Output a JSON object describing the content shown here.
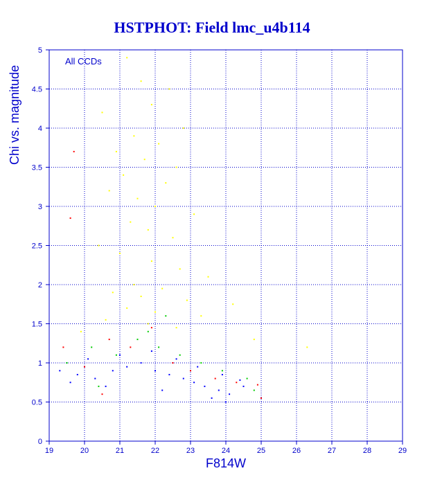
{
  "chart_data": {
    "type": "scatter",
    "title": "HSTPHOT: Field lmc_u4b114",
    "xlabel": "F814W",
    "ylabel": "Chi vs. magnitude",
    "annotation": "All CCDs",
    "xlim": [
      19,
      29
    ],
    "ylim": [
      0,
      5
    ],
    "xticks": [
      "19",
      "20",
      "21",
      "22",
      "23",
      "24",
      "25",
      "26",
      "27",
      "28",
      "29"
    ],
    "yticks": [
      "0",
      "0.5",
      "1",
      "1.5",
      "2",
      "2.5",
      "3",
      "3.5",
      "4",
      "4.5",
      "5"
    ],
    "grid": true,
    "colors": {
      "axes": "#0000cc",
      "grid": "#0000cc",
      "border": "#000000"
    },
    "series": [
      {
        "color": "#ffff00",
        "points": [
          [
            21.2,
            4.9
          ],
          [
            21.6,
            4.6
          ],
          [
            22.4,
            4.5
          ],
          [
            21.9,
            4.3
          ],
          [
            20.5,
            4.2
          ],
          [
            22.8,
            4.0
          ],
          [
            21.4,
            3.9
          ],
          [
            22.1,
            3.8
          ],
          [
            20.9,
            3.7
          ],
          [
            21.7,
            3.6
          ],
          [
            22.6,
            3.5
          ],
          [
            21.1,
            3.4
          ],
          [
            22.3,
            3.3
          ],
          [
            20.7,
            3.2
          ],
          [
            21.5,
            3.1
          ],
          [
            22.0,
            3.0
          ],
          [
            23.1,
            2.9
          ],
          [
            21.3,
            2.8
          ],
          [
            21.8,
            2.7
          ],
          [
            22.5,
            2.6
          ],
          [
            20.4,
            2.5
          ],
          [
            21.0,
            2.4
          ],
          [
            21.9,
            2.3
          ],
          [
            22.7,
            2.2
          ],
          [
            23.5,
            2.1
          ],
          [
            21.4,
            2.0
          ],
          [
            22.2,
            1.95
          ],
          [
            20.8,
            1.9
          ],
          [
            21.6,
            1.85
          ],
          [
            22.9,
            1.8
          ],
          [
            24.2,
            1.75
          ],
          [
            21.2,
            1.7
          ],
          [
            22.0,
            1.65
          ],
          [
            23.3,
            1.6
          ],
          [
            20.6,
            1.55
          ],
          [
            21.8,
            1.5
          ],
          [
            22.6,
            1.45
          ],
          [
            19.9,
            1.4
          ],
          [
            24.8,
            1.3
          ],
          [
            26.3,
            1.2
          ]
        ]
      },
      {
        "color": "#0000ff",
        "points": [
          [
            19.3,
            0.9
          ],
          [
            19.8,
            0.85
          ],
          [
            20.3,
            0.8
          ],
          [
            20.8,
            0.9
          ],
          [
            21.2,
            0.95
          ],
          [
            21.6,
            1.0
          ],
          [
            22.0,
            0.9
          ],
          [
            22.4,
            0.85
          ],
          [
            22.8,
            0.8
          ],
          [
            23.1,
            0.75
          ],
          [
            23.4,
            0.7
          ],
          [
            23.8,
            0.65
          ],
          [
            24.1,
            0.6
          ],
          [
            24.5,
            0.7
          ],
          [
            20.1,
            1.05
          ],
          [
            21.0,
            1.1
          ],
          [
            21.9,
            1.15
          ],
          [
            22.6,
            1.05
          ],
          [
            23.2,
            0.95
          ],
          [
            23.9,
            0.85
          ],
          [
            24.4,
            0.78
          ],
          [
            19.6,
            0.75
          ],
          [
            20.6,
            0.7
          ],
          [
            22.2,
            0.65
          ],
          [
            23.6,
            0.55
          ],
          [
            24.0,
            0.5
          ]
        ]
      },
      {
        "color": "#00cc00",
        "points": [
          [
            19.5,
            1.0
          ],
          [
            20.2,
            1.2
          ],
          [
            20.9,
            1.1
          ],
          [
            21.5,
            1.3
          ],
          [
            22.1,
            1.2
          ],
          [
            22.7,
            1.1
          ],
          [
            23.3,
            1.0
          ],
          [
            23.9,
            0.9
          ],
          [
            24.6,
            0.8
          ],
          [
            21.8,
            1.4
          ],
          [
            22.3,
            1.6
          ],
          [
            20.4,
            0.7
          ],
          [
            24.8,
            0.65
          ]
        ]
      },
      {
        "color": "#ff0000",
        "points": [
          [
            19.7,
            3.7
          ],
          [
            19.6,
            2.85
          ],
          [
            19.4,
            1.2
          ],
          [
            20.0,
            0.95
          ],
          [
            20.7,
            1.3
          ],
          [
            21.3,
            1.2
          ],
          [
            21.9,
            1.45
          ],
          [
            22.5,
            1.0
          ],
          [
            23.0,
            0.9
          ],
          [
            23.7,
            0.8
          ],
          [
            24.3,
            0.75
          ],
          [
            24.9,
            0.72
          ],
          [
            25.0,
            0.55
          ],
          [
            20.5,
            0.6
          ]
        ]
      }
    ]
  }
}
